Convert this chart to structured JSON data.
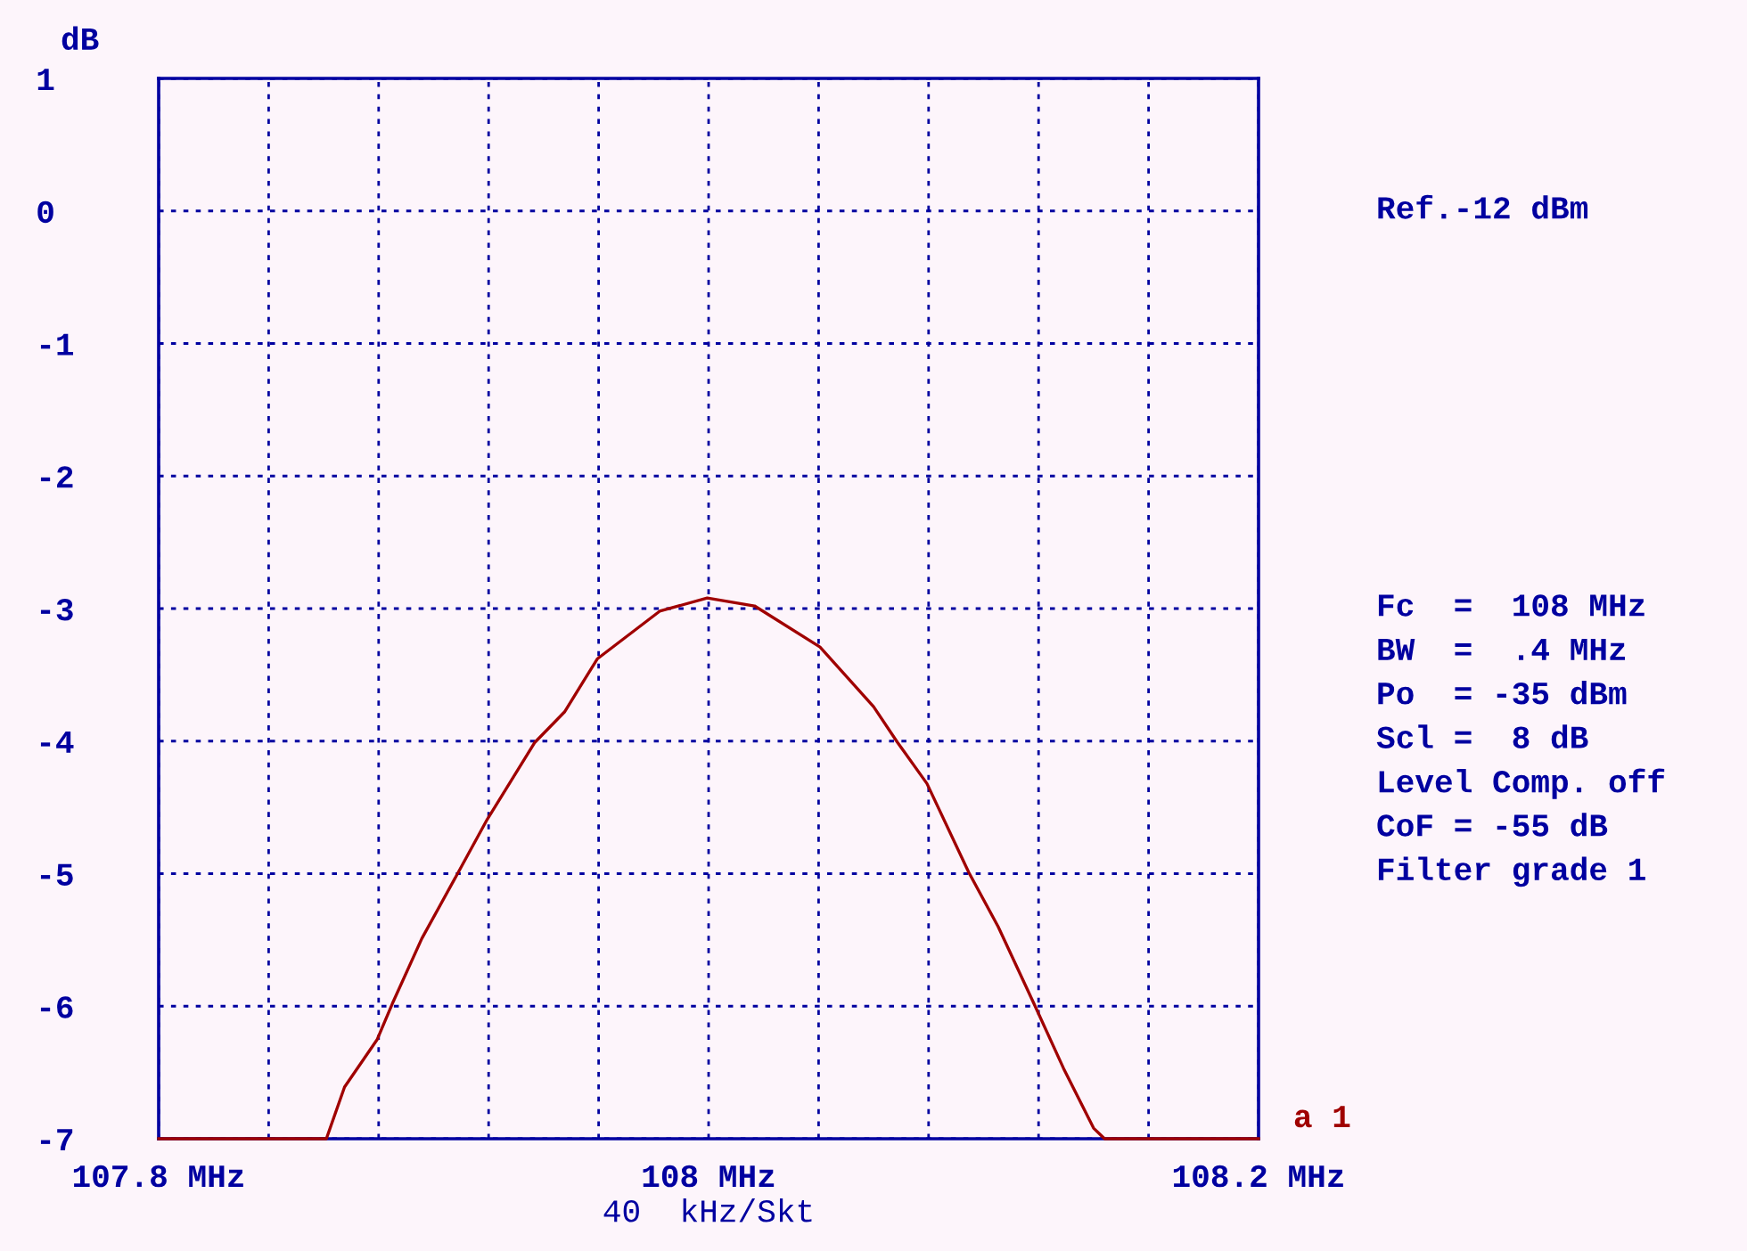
{
  "chart_data": {
    "type": "line",
    "xlabel": "40  kHz/Skt",
    "ylabel": "dB",
    "x": [
      107.8,
      107.861,
      107.8676,
      107.8795,
      107.885,
      107.8957,
      107.9087,
      107.9195,
      107.9368,
      107.9476,
      107.9595,
      107.9822,
      107.9995,
      108.0167,
      108.0405,
      108.06,
      108.0687,
      108.0794,
      108.0946,
      108.1053,
      108.1183,
      108.1291,
      108.14,
      108.144,
      108.2
    ],
    "series": [
      {
        "color": "#a00000",
        "values": [
          -7,
          -7,
          -6.61,
          -6.25,
          -5.98,
          -5.49,
          -5.0,
          -4.59,
          -4.01,
          -3.78,
          -3.38,
          -3.02,
          -2.92,
          -2.98,
          -3.29,
          -3.74,
          -4.01,
          -4.32,
          -4.99,
          -5.4,
          -5.98,
          -6.47,
          -6.92,
          -7,
          -7
        ]
      }
    ],
    "xlim": [
      107.8,
      108.2
    ],
    "xticks": [
      {
        "value": 107.8,
        "label": "107.8 MHz"
      },
      {
        "value": 107.84,
        "label": null
      },
      {
        "value": 107.88,
        "label": null
      },
      {
        "value": 107.92,
        "label": null
      },
      {
        "value": 107.96,
        "label": null
      },
      {
        "value": 108,
        "label": "108 MHz"
      },
      {
        "value": 108.04,
        "label": null
      },
      {
        "value": 108.08,
        "label": null
      },
      {
        "value": 108.12,
        "label": null
      },
      {
        "value": 108.16,
        "label": null
      },
      {
        "value": 108.2,
        "label": "108.2 MHz"
      }
    ],
    "ylim": [
      -7,
      1
    ],
    "yticks": [
      -7,
      -6,
      -5,
      -4,
      -3,
      -2,
      -1,
      0,
      1
    ],
    "grid": true,
    "line_style": "solid",
    "marker": "none",
    "annotations": [
      "Ref.-12 dBm",
      "Fc  =  108 MHz",
      "BW  =  .4 MHz",
      "Po  = -35 dBm",
      "Scl =  8 dB",
      "Level Comp. off",
      "CoF = -55 dB",
      "Filter grade 1",
      {
        "text": "a 1",
        "x": 108.2,
        "y": -7
      }
    ]
  }
}
